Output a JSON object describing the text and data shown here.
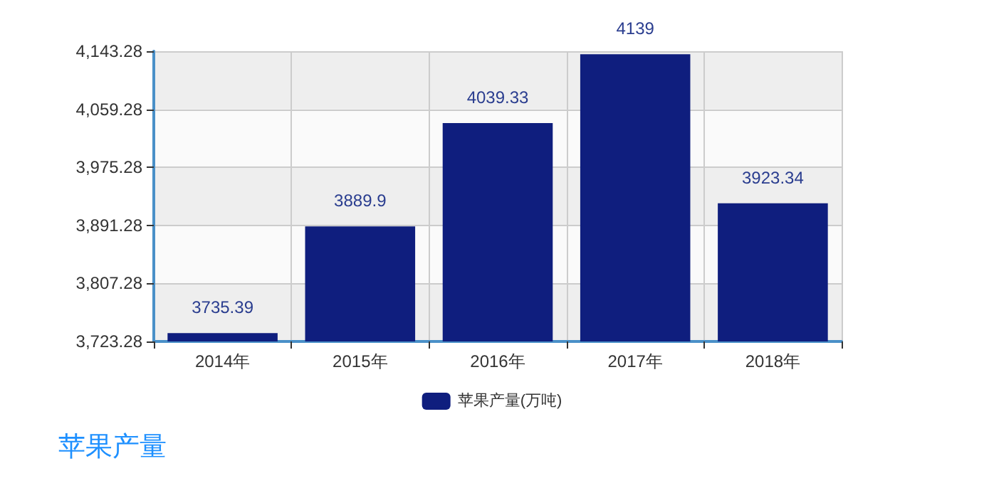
{
  "chart_data": {
    "type": "bar",
    "title": "苹果产量",
    "categories": [
      "2014年",
      "2015年",
      "2016年",
      "2017年",
      "2018年"
    ],
    "series": [
      {
        "name": "苹果产量(万吨)",
        "color": "#0f1e7e",
        "values": [
          3735.39,
          3889.9,
          4039.33,
          4139,
          3923.34
        ]
      }
    ],
    "ylim": [
      3723.28,
      4143.28
    ],
    "yticks": [
      {
        "value": 3723.28,
        "label": "3,723.28"
      },
      {
        "value": 3807.28,
        "label": "3,807.28"
      },
      {
        "value": 3891.28,
        "label": "3,891.28"
      },
      {
        "value": 3975.28,
        "label": "3,975.28"
      },
      {
        "value": 4059.28,
        "label": "4,059.28"
      },
      {
        "value": 4143.28,
        "label": "4,143.28"
      }
    ],
    "grid": true,
    "legend": "bottom",
    "data_labels": true
  }
}
